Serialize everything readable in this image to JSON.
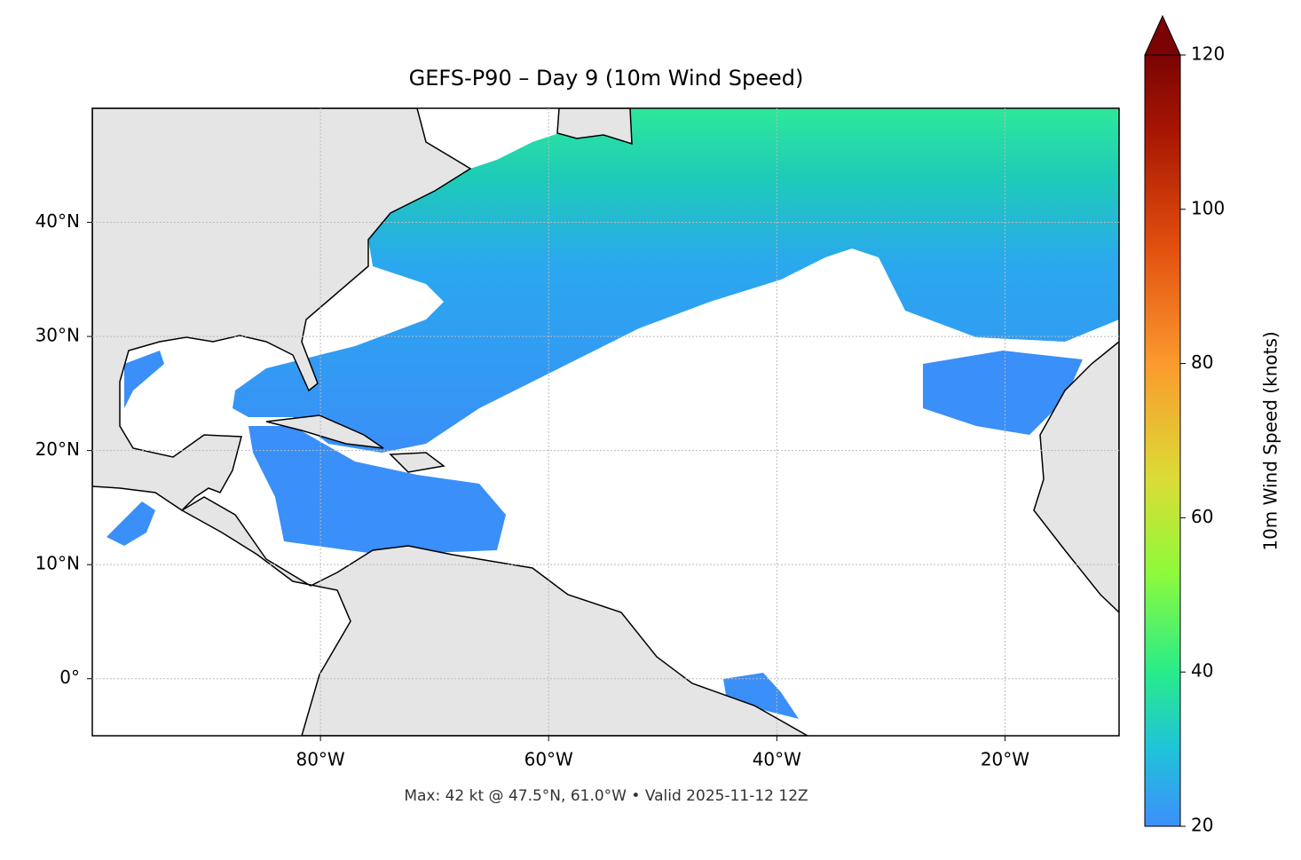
{
  "chart_data": {
    "type": "map",
    "title": "GEFS-P90 – Day 9 (10m Wind Speed)",
    "footnote": "Max: 42 kt @ 47.5°N, 61.0°W • Valid 2025-11-12 12Z",
    "xlim": [
      -100,
      -10
    ],
    "ylim": [
      -5,
      50
    ],
    "xticks": [
      {
        "value": -80,
        "label": "80°W"
      },
      {
        "value": -60,
        "label": "60°W"
      },
      {
        "value": -40,
        "label": "40°W"
      },
      {
        "value": -20,
        "label": "20°W"
      }
    ],
    "yticks": [
      {
        "value": 0,
        "label": "0°"
      },
      {
        "value": 10,
        "label": "10°N"
      },
      {
        "value": 20,
        "label": "20°N"
      },
      {
        "value": 30,
        "label": "30°N"
      },
      {
        "value": 40,
        "label": "40°N"
      }
    ],
    "grid": true,
    "colorbar": {
      "label": "10m Wind Speed (knots)",
      "lim": [
        20,
        120
      ],
      "ticks": [
        20,
        40,
        60,
        80,
        100,
        120
      ]
    }
  }
}
